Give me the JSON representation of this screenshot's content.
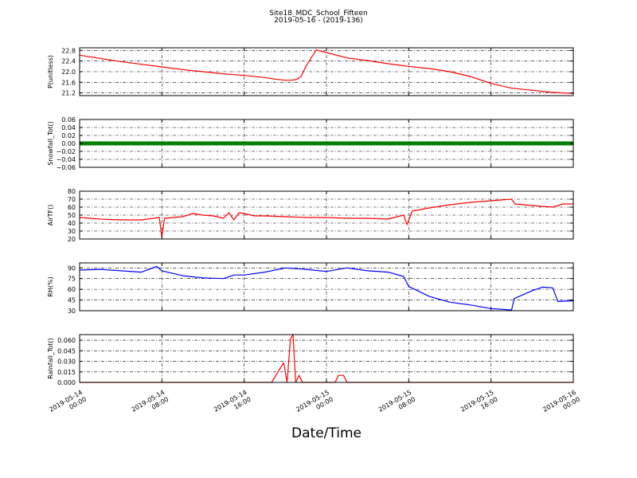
{
  "title": "Site18_MDC_School_Fifteen",
  "subtitle": "2019-05-16 - (2019-136)",
  "xlabel": "Date/Time",
  "chart_data": {
    "type": "line",
    "title": "Site18_MDC_School_Fifteen",
    "subtitle": "2019-05-16 - (2019-136)",
    "xlabel": "Date/Time",
    "xlim": [
      "2019-05-14 00:00",
      "2019-05-16 00:00"
    ],
    "x_ticks": [
      [
        "2019-05-14",
        "00:00"
      ],
      [
        "2019-05-14",
        "08:00"
      ],
      [
        "2019-05-14",
        "16:00"
      ],
      [
        "2019-05-15",
        "00:00"
      ],
      [
        "2019-05-15",
        "08:00"
      ],
      [
        "2019-05-15",
        "16:00"
      ],
      [
        "2019-05-16",
        "00:00"
      ]
    ],
    "grid": true,
    "panels": [
      {
        "ylabel": "P(unitless)",
        "color": "#ff0000",
        "ylim": [
          21.1,
          22.9
        ],
        "yticks": [
          "21.2",
          "21.6",
          "22.0",
          "22.4",
          "22.8"
        ],
        "x": [
          "2019-05-14 00:00",
          "2019-05-14 02:00",
          "2019-05-14 04:00",
          "2019-05-14 06:00",
          "2019-05-14 08:00",
          "2019-05-14 10:00",
          "2019-05-14 12:00",
          "2019-05-14 14:00",
          "2019-05-14 16:00",
          "2019-05-14 18:00",
          "2019-05-14 19:00",
          "2019-05-14 20:00",
          "2019-05-14 20:30",
          "2019-05-14 21:00",
          "2019-05-14 21:30",
          "2019-05-14 22:00",
          "2019-05-14 23:00",
          "2019-05-15 00:00",
          "2019-05-15 02:00",
          "2019-05-15 04:00",
          "2019-05-15 06:00",
          "2019-05-15 08:00",
          "2019-05-15 10:00",
          "2019-05-15 12:00",
          "2019-05-15 14:00",
          "2019-05-15 16:00",
          "2019-05-15 18:00",
          "2019-05-15 20:00",
          "2019-05-15 22:00",
          "2019-05-16 00:00"
        ],
        "y": [
          22.62,
          22.5,
          22.38,
          22.28,
          22.18,
          22.08,
          22.0,
          21.92,
          21.86,
          21.78,
          21.72,
          21.68,
          21.68,
          21.7,
          21.8,
          22.2,
          22.82,
          22.72,
          22.52,
          22.42,
          22.3,
          22.2,
          22.12,
          22.0,
          21.82,
          21.56,
          21.38,
          21.3,
          21.22,
          21.18
        ]
      },
      {
        "ylabel": "Snowfall_Tot()",
        "color": "#008000",
        "style": "thick",
        "ylim": [
          -0.06,
          0.06
        ],
        "yticks": [
          "−0.06",
          "−0.04",
          "−0.02",
          "0.00",
          "0.02",
          "0.04",
          "0.06"
        ],
        "x": [
          "2019-05-14 00:00",
          "2019-05-16 00:00"
        ],
        "y": [
          0.0,
          0.0
        ]
      },
      {
        "ylabel": "AirTF()",
        "color": "#ff0000",
        "ylim": [
          20,
          80
        ],
        "yticks": [
          "20",
          "30",
          "40",
          "50",
          "60",
          "70",
          "80"
        ],
        "x": [
          "2019-05-14 00:00",
          "2019-05-14 02:00",
          "2019-05-14 04:00",
          "2019-05-14 06:00",
          "2019-05-14 07:45",
          "2019-05-14 08:00",
          "2019-05-14 08:15",
          "2019-05-14 10:00",
          "2019-05-14 11:00",
          "2019-05-14 12:00",
          "2019-05-14 13:00",
          "2019-05-14 14:00",
          "2019-05-14 14:30",
          "2019-05-14 15:00",
          "2019-05-14 15:30",
          "2019-05-14 16:00",
          "2019-05-14 17:00",
          "2019-05-14 18:00",
          "2019-05-14 20:00",
          "2019-05-14 22:00",
          "2019-05-15 00:00",
          "2019-05-15 02:00",
          "2019-05-15 04:00",
          "2019-05-15 06:00",
          "2019-05-15 07:30",
          "2019-05-15 07:50",
          "2019-05-15 08:20",
          "2019-05-15 10:00",
          "2019-05-15 12:00",
          "2019-05-15 14:00",
          "2019-05-15 16:00",
          "2019-05-15 18:00",
          "2019-05-15 18:20",
          "2019-05-15 20:00",
          "2019-05-15 22:00",
          "2019-05-15 23:00",
          "2019-05-16 00:00"
        ],
        "y": [
          47,
          45,
          44,
          44,
          47,
          22,
          46,
          48,
          52,
          50,
          49,
          46,
          53,
          44,
          53,
          52,
          49,
          49,
          48,
          47,
          47,
          46,
          46,
          45,
          50,
          38,
          55,
          59,
          63,
          66,
          68,
          70,
          64,
          62,
          60,
          64,
          64
        ]
      },
      {
        "ylabel": "RH(%)",
        "color": "#0000ff",
        "ylim": [
          30,
          97
        ],
        "yticks": [
          "30",
          "45",
          "60",
          "75",
          "90"
        ],
        "x": [
          "2019-05-14 00:00",
          "2019-05-14 02:00",
          "2019-05-14 04:00",
          "2019-05-14 06:00",
          "2019-05-14 07:30",
          "2019-05-14 08:00",
          "2019-05-14 10:00",
          "2019-05-14 12:00",
          "2019-05-14 14:00",
          "2019-05-14 15:00",
          "2019-05-14 16:00",
          "2019-05-14 18:00",
          "2019-05-14 20:00",
          "2019-05-14 22:00",
          "2019-05-15 00:00",
          "2019-05-15 02:00",
          "2019-05-15 04:00",
          "2019-05-15 06:00",
          "2019-05-15 07:30",
          "2019-05-15 08:00",
          "2019-05-15 10:00",
          "2019-05-15 12:00",
          "2019-05-15 14:00",
          "2019-05-15 16:00",
          "2019-05-15 18:00",
          "2019-05-15 18:15",
          "2019-05-15 20:00",
          "2019-05-15 21:00",
          "2019-05-15 22:00",
          "2019-05-15 22:30",
          "2019-05-16 00:00"
        ],
        "y": [
          87,
          88,
          86,
          84,
          92,
          86,
          79,
          76,
          75,
          80,
          80,
          84,
          90,
          88,
          85,
          90,
          86,
          84,
          78,
          64,
          50,
          42,
          38,
          33,
          31,
          47,
          58,
          63,
          62,
          43,
          44
        ]
      },
      {
        "ylabel": "Rainfall_Tot()",
        "color": "#ff0000",
        "ylim": [
          0,
          0.068
        ],
        "yticks": [
          "0.000",
          "0.015",
          "0.030",
          "0.045",
          "0.060"
        ],
        "x": [
          "2019-05-14 00:00",
          "2019-05-14 18:40",
          "2019-05-14 19:50",
          "2019-05-14 20:10",
          "2019-05-14 20:30",
          "2019-05-14 20:45",
          "2019-05-14 21:00",
          "2019-05-14 21:20",
          "2019-05-14 21:40",
          "2019-05-14 22:00",
          "2019-05-15 00:50",
          "2019-05-15 01:10",
          "2019-05-15 01:40",
          "2019-05-15 02:00",
          "2019-05-16 00:00"
        ],
        "y": [
          0,
          0,
          0.028,
          0.0,
          0.062,
          0.068,
          0.0,
          0.01,
          0.0,
          0,
          0,
          0.01,
          0.01,
          0,
          0
        ]
      }
    ]
  }
}
